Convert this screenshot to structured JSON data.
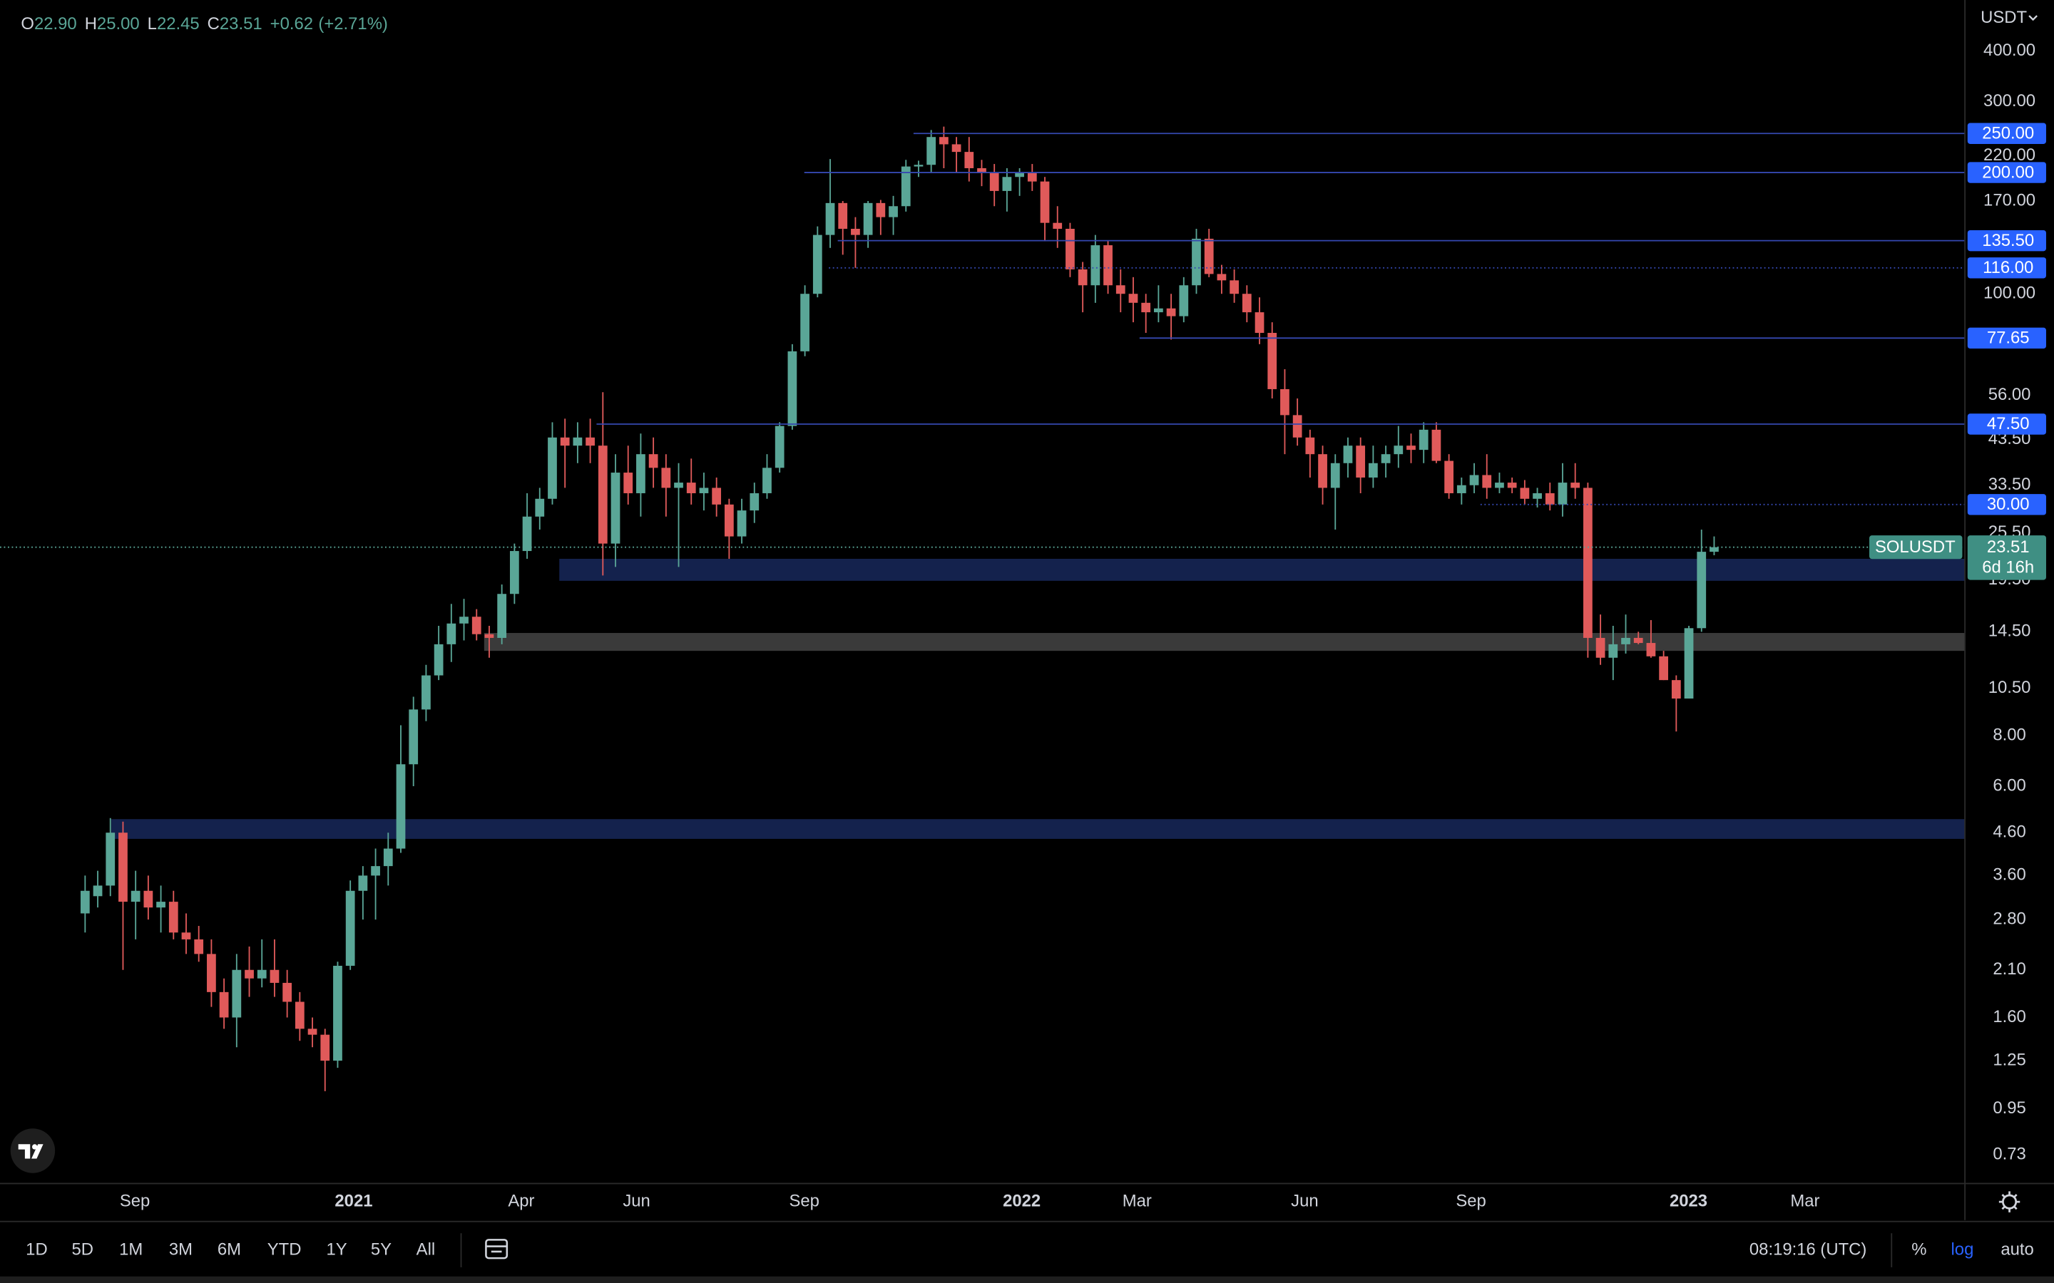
{
  "header": {
    "ohlc": [
      {
        "label": "O",
        "value": "22.90"
      },
      {
        "label": "H",
        "value": "25.00"
      },
      {
        "label": "L",
        "value": "22.45"
      },
      {
        "label": "C",
        "value": "23.51"
      }
    ],
    "change": "+0.62",
    "change_pct": "(+2.71%)"
  },
  "chart_data": {
    "type": "candlestick",
    "symbol": "SOLUSDT",
    "currency": "USDT",
    "log_scale": true,
    "up_color": "#5aa697",
    "down_color": "#e05a5a",
    "open": [
      2.9,
      3.2,
      3.4,
      4.6,
      3.1,
      3.3,
      3.0,
      3.1,
      2.6,
      2.5,
      2.3,
      1.85,
      1.6,
      2.1,
      2.0,
      2.1,
      1.95,
      1.75,
      1.5,
      1.45,
      1.25,
      2.15,
      3.3,
      3.6,
      3.8,
      4.2,
      6.8,
      9.3,
      11.3,
      13.5,
      15.2,
      15.8,
      14.3,
      14.0,
      18,
      23,
      28,
      31,
      44,
      42,
      44,
      42,
      24,
      36,
      32,
      40,
      37,
      33,
      34,
      32,
      33,
      30,
      25,
      29,
      32,
      37,
      47,
      72,
      100,
      140,
      168,
      145,
      140,
      168,
      155,
      165,
      207,
      209,
      245,
      235,
      225,
      205,
      200,
      180,
      195,
      200,
      190,
      150,
      145,
      115,
      105,
      132,
      105,
      100,
      95,
      90,
      92,
      88,
      105,
      137,
      112,
      108,
      100,
      90,
      80,
      58,
      50,
      44,
      40,
      33,
      38,
      42,
      35,
      38,
      40,
      42,
      41,
      46,
      38.5,
      32,
      33.5,
      35.5,
      33,
      34,
      33,
      31,
      32,
      30,
      34,
      33,
      14,
      12.5,
      13.5,
      14.0,
      13.6,
      12.6,
      11,
      9.9,
      14.8,
      22.9
    ],
    "high": [
      3.6,
      3.7,
      5.0,
      4.9,
      3.7,
      3.6,
      3.4,
      3.3,
      2.9,
      2.7,
      2.5,
      2.0,
      2.3,
      2.4,
      2.5,
      2.5,
      2.1,
      1.85,
      1.6,
      1.5,
      2.2,
      3.5,
      3.8,
      4.2,
      4.6,
      8.5,
      10,
      12,
      15,
      17,
      17.5,
      16.5,
      15,
      19,
      24,
      32,
      33,
      48,
      49,
      48,
      49,
      57,
      40,
      42,
      45,
      44,
      40,
      38,
      39,
      36,
      35,
      31,
      31,
      34,
      40,
      48,
      75,
      105,
      147,
      216,
      170,
      155,
      170,
      171,
      175,
      215,
      214,
      255,
      260,
      245,
      245,
      215,
      210,
      205,
      205,
      210,
      195,
      165,
      150,
      120,
      140,
      135,
      115,
      110,
      100,
      105,
      100,
      110,
      145,
      145,
      118,
      115,
      105,
      98,
      85,
      65,
      55,
      46,
      42,
      40,
      44,
      44,
      42,
      42,
      47,
      45,
      48,
      48,
      40,
      35,
      38,
      40,
      36,
      35,
      34.5,
      33,
      34,
      38,
      38,
      34,
      16,
      15,
      16,
      14.5,
      15.5,
      13,
      11.3,
      15,
      26,
      25.0
    ],
    "low": [
      2.6,
      3.0,
      3.2,
      2.1,
      2.5,
      2.8,
      2.6,
      2.5,
      2.3,
      2.2,
      1.7,
      1.5,
      1.35,
      1.8,
      1.9,
      1.8,
      1.6,
      1.4,
      1.35,
      1.05,
      1.2,
      2.1,
      2.8,
      2.8,
      3.4,
      4.1,
      6.0,
      8.7,
      11,
      12.2,
      13.8,
      13.8,
      12.5,
      13.5,
      17,
      22,
      26,
      30,
      33,
      38,
      38,
      20,
      21,
      30,
      28,
      33,
      28,
      21,
      30,
      29,
      28,
      22,
      24,
      27,
      31,
      36,
      46,
      70,
      98,
      130,
      125,
      116,
      130,
      140,
      140,
      160,
      195,
      200,
      205,
      200,
      190,
      185,
      165,
      160,
      175,
      180,
      135,
      130,
      110,
      90,
      95,
      100,
      90,
      85,
      80,
      85,
      77,
      85,
      100,
      110,
      100,
      95,
      85,
      75,
      55,
      40,
      42,
      35,
      30,
      26,
      35,
      32,
      33,
      35,
      37,
      38,
      38,
      38,
      31,
      30,
      32,
      31,
      32,
      32,
      30,
      29.5,
      29,
      28,
      31,
      12.5,
      12,
      11,
      12.8,
      13.5,
      12.5,
      11,
      8.2,
      9.9,
      14.5,
      22.45
    ],
    "close": [
      3.3,
      3.4,
      4.6,
      3.1,
      3.3,
      3.0,
      3.1,
      2.6,
      2.5,
      2.3,
      1.85,
      1.6,
      2.1,
      2.0,
      2.1,
      1.95,
      1.75,
      1.5,
      1.45,
      1.25,
      2.15,
      3.3,
      3.6,
      3.8,
      4.2,
      6.8,
      9.3,
      11.3,
      13.5,
      15.2,
      15.8,
      14.3,
      14.0,
      18,
      23,
      28,
      31,
      44,
      42,
      44,
      42,
      24,
      36,
      32,
      40,
      37,
      33,
      34,
      32,
      33,
      30,
      25,
      29,
      32,
      37,
      47,
      72,
      100,
      140,
      168,
      145,
      140,
      168,
      155,
      165,
      207,
      209,
      245,
      235,
      225,
      205,
      200,
      180,
      195,
      200,
      190,
      150,
      145,
      115,
      105,
      132,
      105,
      100,
      95,
      90,
      92,
      88,
      105,
      137,
      112,
      108,
      100,
      90,
      80,
      58,
      50,
      44,
      40,
      33,
      38,
      42,
      35,
      38,
      40,
      42,
      41,
      46,
      38.5,
      32,
      33.5,
      35.5,
      33,
      34,
      33,
      31,
      32,
      30,
      34,
      33,
      14,
      12.5,
      13.5,
      14.0,
      13.6,
      12.6,
      11.0,
      9.9,
      14.8,
      22.9,
      23.51
    ],
    "xlim": [
      -6.74,
      148.86
    ],
    "xticks": [
      {
        "value": 3.94,
        "label": "Sep"
      },
      {
        "value": 21.27,
        "label": "2021"
      },
      {
        "value": 34.54,
        "label": "Apr"
      },
      {
        "value": 43.67,
        "label": "Jun"
      },
      {
        "value": 56.95,
        "label": "Sep"
      },
      {
        "value": 74.17,
        "label": "2022"
      },
      {
        "value": 83.3,
        "label": "Mar"
      },
      {
        "value": 96.58,
        "label": "Jun"
      },
      {
        "value": 109.75,
        "label": "Sep"
      },
      {
        "value": 126.97,
        "label": "2023"
      },
      {
        "value": 136.2,
        "label": "Mar"
      }
    ],
    "ylim": [
      0.615,
      536
    ],
    "yticks": [
      {
        "value": 400,
        "label": "400.00"
      },
      {
        "value": 300,
        "label": "300.00"
      },
      {
        "value": 220,
        "label": "220.00"
      },
      {
        "value": 170,
        "label": "170.00"
      },
      {
        "value": 100,
        "label": "100.00"
      },
      {
        "value": 56,
        "label": "56.00"
      },
      {
        "value": 43.5,
        "label": "43.50"
      },
      {
        "value": 33.5,
        "label": "33.50"
      },
      {
        "value": 25.5,
        "label": "25.50"
      },
      {
        "value": 19.5,
        "label": "19.50"
      },
      {
        "value": 14.5,
        "label": "14.50"
      },
      {
        "value": 10.5,
        "label": "10.50"
      },
      {
        "value": 8,
        "label": "8.00"
      },
      {
        "value": 6,
        "label": "6.00"
      },
      {
        "value": 4.6,
        "label": "4.60"
      },
      {
        "value": 3.6,
        "label": "3.60"
      },
      {
        "value": 2.8,
        "label": "2.80"
      },
      {
        "value": 2.1,
        "label": "2.10"
      },
      {
        "value": 1.6,
        "label": "1.60"
      },
      {
        "value": 1.25,
        "label": "1.25"
      },
      {
        "value": 0.95,
        "label": "0.95"
      },
      {
        "value": 0.73,
        "label": "0.73"
      }
    ],
    "levels": [
      {
        "value": 250,
        "label": "250.00",
        "start": 65.6,
        "dotted": false
      },
      {
        "value": 200,
        "label": "200.00",
        "start": 56.95,
        "dotted": false
      },
      {
        "value": 135.5,
        "label": "135.50",
        "start": 59.6,
        "dotted": false
      },
      {
        "value": 116,
        "label": "116.00",
        "start": 58.9,
        "dotted": true
      },
      {
        "value": 77.65,
        "label": "77.65",
        "start": 83.5,
        "dotted": false
      },
      {
        "value": 47.5,
        "label": "47.50",
        "start": 40.5,
        "dotted": false
      },
      {
        "value": 30,
        "label": "30.00",
        "start": 110.5,
        "dotted": true
      }
    ],
    "zones": [
      {
        "low": 19.4,
        "high": 22.0,
        "start": 37.55,
        "color": "#14224d"
      },
      {
        "low": 13.0,
        "high": 14.4,
        "start": 31.6,
        "color": "#3a3a3a"
      },
      {
        "low": 4.44,
        "high": 4.97,
        "start": 2.07,
        "color": "#14224d"
      }
    ],
    "last_price": 23.51,
    "countdown": "6d 16h"
  },
  "toolbar": {
    "ranges": [
      "1D",
      "5D",
      "1M",
      "3M",
      "6M",
      "YTD",
      "1Y",
      "5Y",
      "All"
    ],
    "time": "08:19:16 (UTC)",
    "percent": "%",
    "log": "log",
    "auto": "auto"
  }
}
